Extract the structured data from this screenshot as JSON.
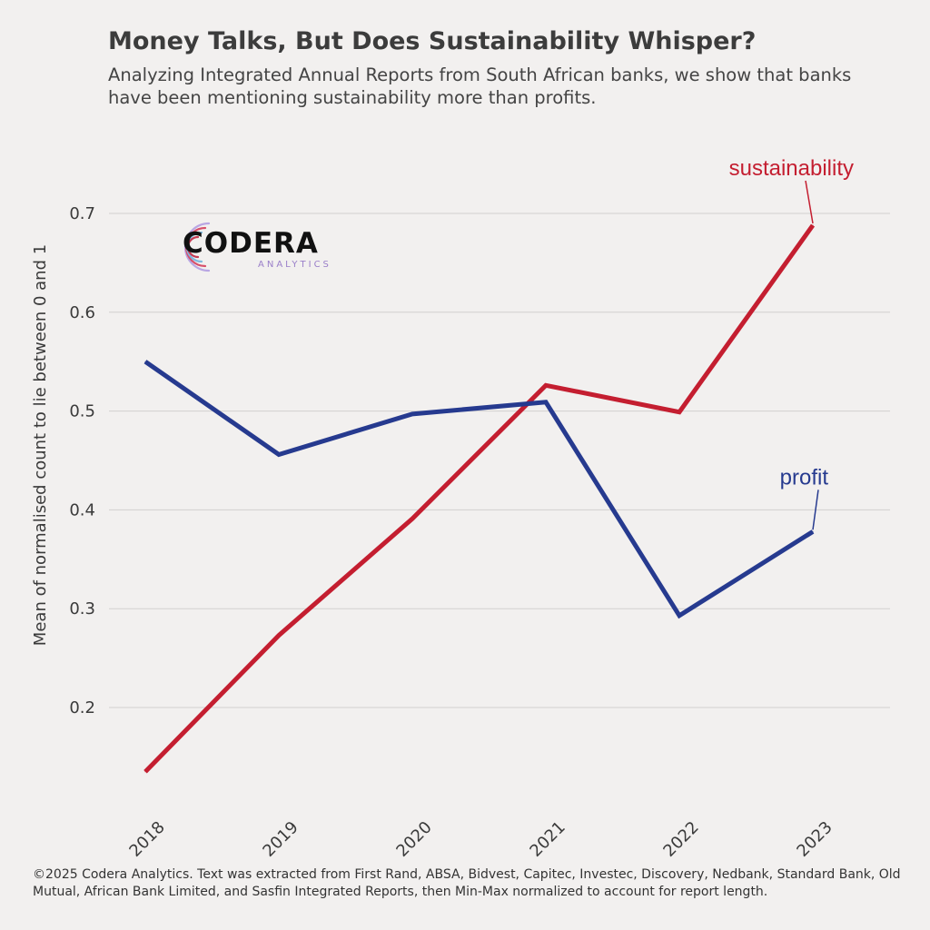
{
  "header": {
    "title": "Money Talks, But Does Sustainability Whisper?",
    "subtitle": "Analyzing Integrated Annual Reports from South African banks, we show that banks have been mentioning sustainability more than profits."
  },
  "logo": {
    "name": "CODERA",
    "sub": "ANALYTICS"
  },
  "footer": {
    "text": "©2025 Codera Analytics. Text was extracted from First Rand, ABSA, Bidvest, Capitec, Investec, Discovery, Nedbank, Standard Bank, Old Mutual, African Bank Limited, and Sasfin Integrated Reports, then Min-Max normalized to account for report length."
  },
  "chart_data": {
    "type": "line",
    "title": "Money Talks, But Does Sustainability Whisper?",
    "xlabel": "",
    "ylabel": "Mean of normalised count to lie between 0 and 1",
    "categories": [
      "2018",
      "2019",
      "2020",
      "2021",
      "2022",
      "2023"
    ],
    "y_ticks": [
      "0.2",
      "0.3",
      "0.4",
      "0.5",
      "0.6",
      "0.7"
    ],
    "ylim": [
      0.12,
      0.72
    ],
    "grid": "horizontal",
    "series": [
      {
        "name": "sustainability",
        "color": "#c41e30",
        "values": [
          0.135,
          0.273,
          0.391,
          0.526,
          0.499,
          0.688
        ]
      },
      {
        "name": "profit",
        "color": "#263a8f",
        "values": [
          0.55,
          0.456,
          0.497,
          0.509,
          0.293,
          0.378
        ]
      }
    ]
  }
}
